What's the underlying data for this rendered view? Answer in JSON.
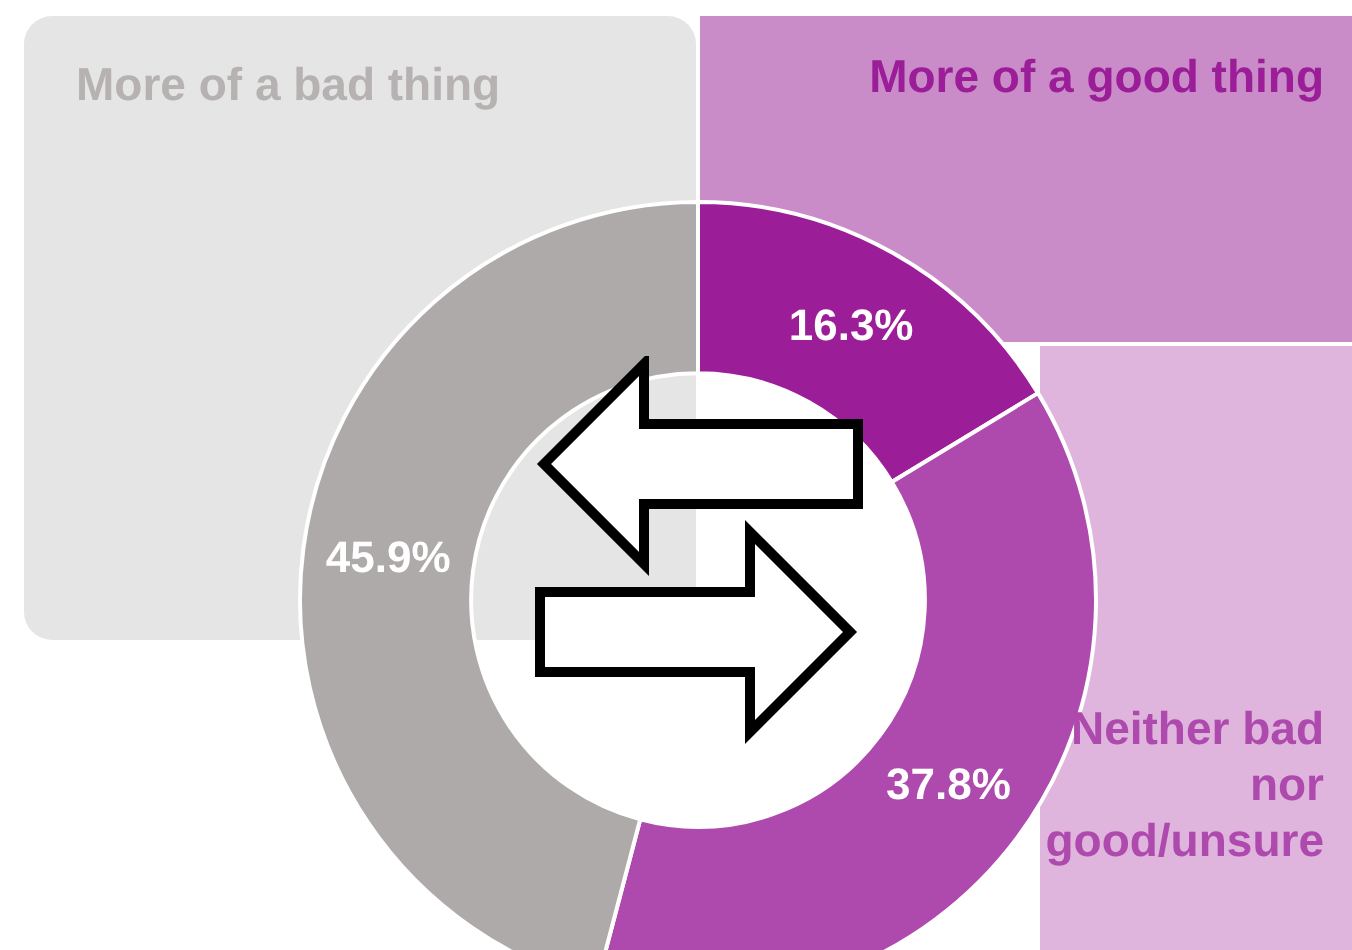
{
  "chart_data": {
    "type": "donut",
    "categories": [
      "More of a good thing",
      "Neither bad nor good/unsure",
      "More of a bad thing"
    ],
    "values": [
      16.3,
      37.8,
      45.9
    ],
    "colors": [
      "#9b1d98",
      "#ae4aad",
      "#aeaaa9"
    ],
    "value_labels": [
      "16.3%",
      "37.8%",
      "45.9%"
    ],
    "legend": false
  }
}
